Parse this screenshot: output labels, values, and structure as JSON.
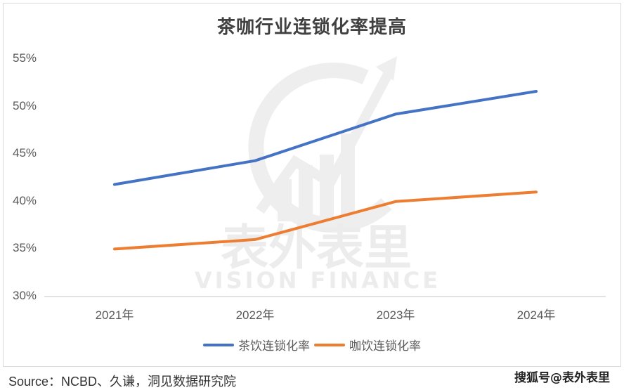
{
  "chart_data": {
    "type": "line",
    "title": "茶咖行业连锁化率提高",
    "categories": [
      "2021年",
      "2022年",
      "2023年",
      "2024年"
    ],
    "series": [
      {
        "name": "茶饮连锁化率",
        "color": "#4472c4",
        "values": [
          41.8,
          44.3,
          49.2,
          51.6
        ]
      },
      {
        "name": "咖饮连锁化率",
        "color": "#ed7d31",
        "values": [
          35.0,
          36.0,
          40.0,
          41.0
        ]
      }
    ],
    "xlabel": "",
    "ylabel": "",
    "ylim": [
      30,
      55
    ],
    "yticks": [
      "55%",
      "50%",
      "45%",
      "40%",
      "35%",
      "30%"
    ],
    "grid": false,
    "legend_position": "bottom"
  },
  "watermark": {
    "cn": "表外表里",
    "en": "VISION FINANCE"
  },
  "footer": {
    "source": "Source：NCBD、久谦，洞见数据研究院",
    "credit": "搜狐号@表外表里"
  }
}
